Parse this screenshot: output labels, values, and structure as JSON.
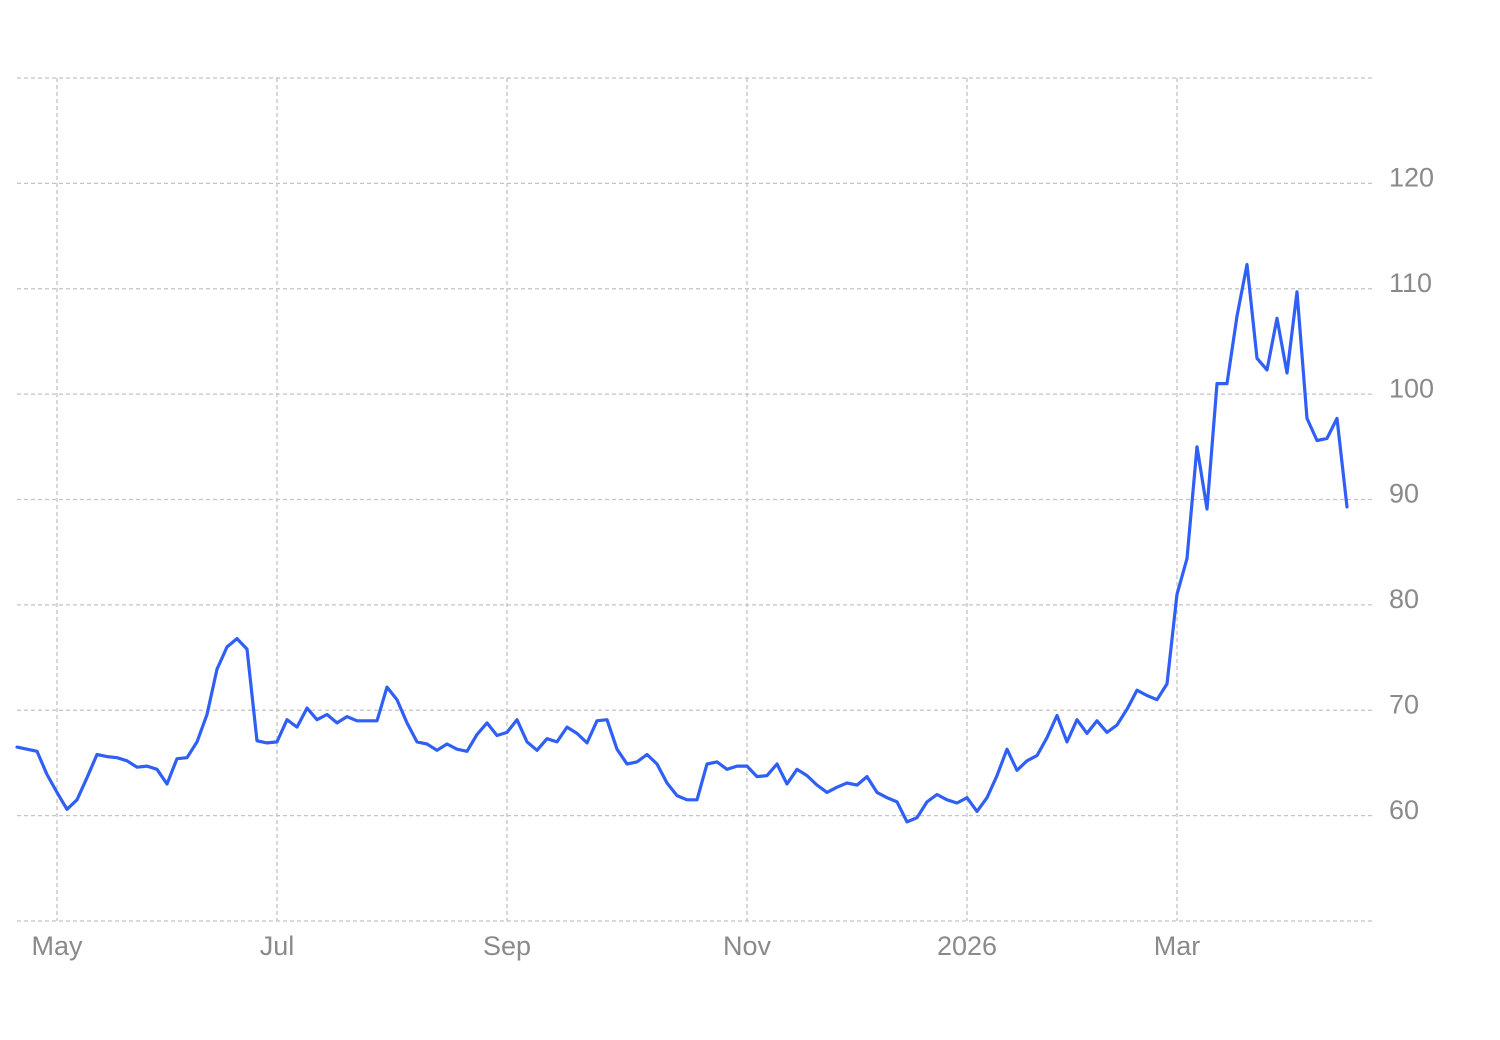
{
  "chart_data": {
    "type": "line",
    "categories": [
      null,
      null,
      null,
      null,
      "May",
      null,
      null,
      null,
      null,
      null,
      null,
      null,
      null,
      null,
      null,
      null,
      null,
      null,
      null,
      null,
      null,
      null,
      null,
      null,
      null,
      null,
      "Jul",
      null,
      null,
      null,
      null,
      null,
      null,
      null,
      null,
      null,
      null,
      null,
      null,
      null,
      null,
      null,
      null,
      null,
      null,
      null,
      null,
      null,
      null,
      "Sep",
      null,
      null,
      null,
      null,
      null,
      null,
      null,
      null,
      null,
      null,
      null,
      null,
      null,
      null,
      null,
      null,
      null,
      null,
      null,
      null,
      null,
      null,
      null,
      "Nov",
      null,
      null,
      null,
      null,
      null,
      null,
      null,
      null,
      null,
      null,
      null,
      null,
      null,
      null,
      null,
      null,
      null,
      null,
      null,
      null,
      null,
      "2026",
      null,
      null,
      null,
      null,
      null,
      null,
      null,
      null,
      null,
      null,
      null,
      null,
      null,
      null,
      null,
      null,
      null,
      null,
      null,
      null,
      "Mar",
      null,
      null,
      null,
      null,
      null,
      null,
      null,
      null,
      null,
      null,
      null,
      null,
      null,
      null,
      null,
      null,
      null
    ],
    "series": [
      {
        "color": "#2f5ff5",
        "values": [
          66.5,
          66.3,
          66.1,
          63.9,
          62.2,
          60.6,
          61.5,
          63.6,
          65.8,
          65.6,
          65.5,
          65.2,
          64.6,
          64.7,
          64.4,
          63.0,
          65.4,
          65.5,
          67.0,
          69.6,
          73.9,
          76.0,
          76.8,
          75.8,
          67.1,
          66.9,
          67.0,
          69.1,
          68.4,
          70.2,
          69.1,
          69.6,
          68.8,
          69.4,
          69.0,
          69.0,
          69.0,
          72.2,
          71.0,
          68.8,
          67.0,
          66.8,
          66.2,
          66.8,
          66.3,
          66.1,
          67.7,
          68.8,
          67.6,
          67.9,
          69.1,
          67.0,
          66.2,
          67.3,
          67.0,
          68.4,
          67.8,
          66.9,
          69.0,
          69.1,
          66.3,
          64.9,
          65.1,
          65.8,
          64.9,
          63.1,
          61.9,
          61.5,
          61.5,
          64.9,
          65.1,
          64.4,
          64.7,
          64.7,
          63.7,
          63.8,
          64.9,
          63.0,
          64.4,
          63.8,
          62.9,
          62.2,
          62.7,
          63.1,
          62.9,
          63.7,
          62.2,
          61.7,
          61.3,
          59.4,
          59.8,
          61.3,
          62.0,
          61.5,
          61.2,
          61.7,
          60.4,
          61.7,
          63.8,
          66.3,
          64.3,
          65.2,
          65.7,
          67.4,
          69.5,
          67.0,
          69.1,
          67.8,
          69.0,
          67.9,
          68.6,
          70.1,
          71.9,
          71.4,
          71.0,
          72.5,
          81.0,
          84.4,
          95.0,
          89.1,
          101.0,
          101.0,
          107.4,
          112.3,
          103.4,
          102.3,
          107.2,
          102.0,
          109.7,
          97.7,
          95.6,
          95.8,
          97.7,
          89.3
        ]
      }
    ],
    "ylim": [
      50,
      130
    ],
    "yticks": [
      60,
      70,
      80,
      90,
      100,
      110,
      120
    ],
    "grid": true
  }
}
